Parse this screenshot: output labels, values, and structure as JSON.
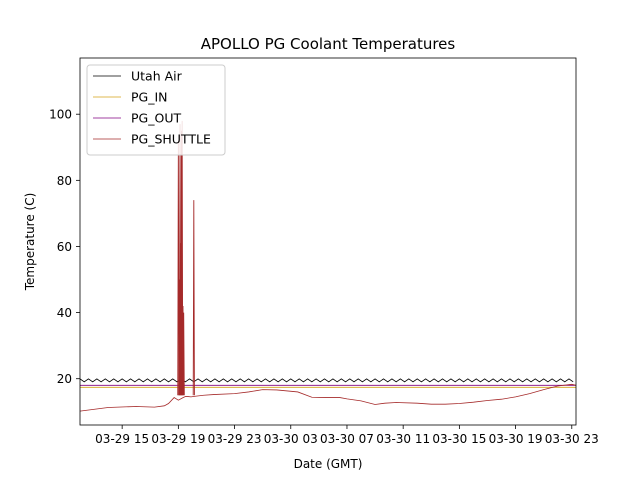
{
  "chart_data": {
    "type": "line",
    "title": "APOLLO PG Coolant Temperatures",
    "xlabel": "Date (GMT)",
    "ylabel": "Temperature (C)",
    "x_unit": "hours since 03-29 12:00 GMT",
    "xlim": [
      0,
      35.3
    ],
    "ylim": [
      6,
      117
    ],
    "x_ticks": [
      {
        "value": 3,
        "label": "03-29 15"
      },
      {
        "value": 7,
        "label": "03-29 19"
      },
      {
        "value": 11,
        "label": "03-29 23"
      },
      {
        "value": 15,
        "label": "03-30 03"
      },
      {
        "value": 19,
        "label": "03-30 07"
      },
      {
        "value": 23,
        "label": "03-30 11"
      },
      {
        "value": 27,
        "label": "03-30 15"
      },
      {
        "value": 31,
        "label": "03-30 19"
      },
      {
        "value": 35,
        "label": "03-30 23"
      }
    ],
    "y_ticks": [
      {
        "value": 20,
        "label": "20"
      },
      {
        "value": 40,
        "label": "40"
      },
      {
        "value": 60,
        "label": "60"
      },
      {
        "value": 80,
        "label": "80"
      },
      {
        "value": 100,
        "label": "100"
      }
    ],
    "legend_position": "top-left",
    "series": [
      {
        "name": "Utah Air",
        "color": "#000000",
        "style": "oscillating",
        "base": 19.5,
        "amplitude": 0.45,
        "period_hours": 0.6
      },
      {
        "name": "PG_IN",
        "color": "#d4a017",
        "style": "line",
        "x": [
          0,
          35.3
        ],
        "y": [
          17.4,
          17.4
        ]
      },
      {
        "name": "PG_OUT",
        "color": "#800080",
        "style": "line",
        "x": [
          0,
          35.3
        ],
        "y": [
          18.0,
          18.0
        ]
      },
      {
        "name": "PG_SHUTTLE",
        "color": "#a52a2a",
        "style": "line",
        "x": [
          0,
          2,
          4,
          5.3,
          6.0,
          6.3,
          6.7,
          7.0,
          7.3,
          7.5,
          7.7,
          7.9,
          8.2,
          8.8,
          9.5,
          11,
          12,
          13,
          14,
          15.5,
          16.5,
          17.5,
          18.5,
          19,
          20,
          21,
          21.7,
          22.5,
          24,
          25,
          26,
          27,
          28,
          29,
          30,
          31,
          32,
          33,
          34,
          35,
          35.3
        ],
        "y": [
          10.2,
          11.3,
          11.6,
          11.4,
          11.8,
          12.5,
          14.3,
          13.5,
          14.2,
          14.6,
          14.6,
          14.5,
          14.7,
          15.0,
          15.2,
          15.5,
          16.0,
          16.7,
          16.6,
          16.0,
          14.4,
          14.3,
          14.3,
          13.9,
          13.3,
          12.2,
          12.6,
          12.8,
          12.6,
          12.3,
          12.3,
          12.5,
          12.9,
          13.4,
          13.8,
          14.5,
          15.5,
          16.7,
          17.8,
          18.3,
          18.0
        ],
        "spikes": [
          {
            "x": 7.0,
            "y": 92
          },
          {
            "x": 7.06,
            "y": 50
          },
          {
            "x": 7.12,
            "y": 97
          },
          {
            "x": 7.17,
            "y": 61
          },
          {
            "x": 7.22,
            "y": 95
          },
          {
            "x": 7.27,
            "y": 98
          },
          {
            "x": 7.33,
            "y": 42
          },
          {
            "x": 7.38,
            "y": 40
          },
          {
            "x": 8.1,
            "y": 74
          }
        ]
      }
    ]
  }
}
